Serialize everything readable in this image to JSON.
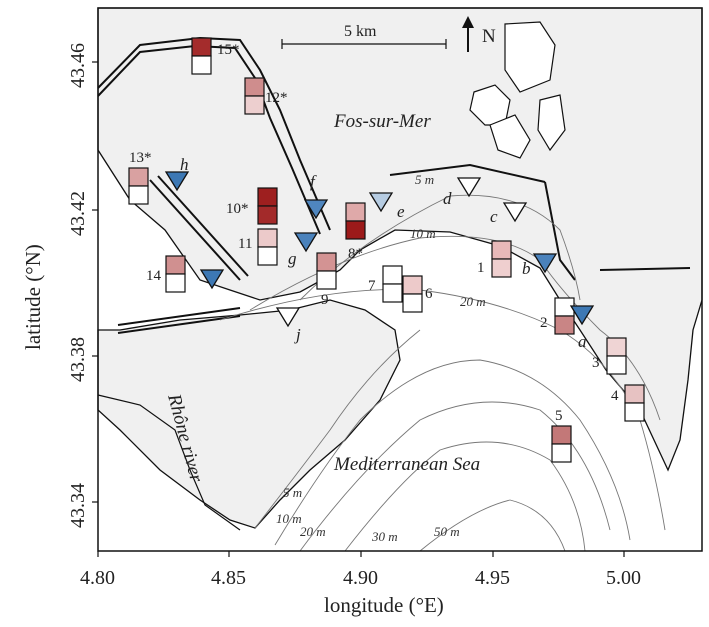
{
  "axes": {
    "xlabel": "longitude (°E)",
    "ylabel": "latitude (°N)",
    "xticks": [
      "4.80",
      "4.85",
      "4.90",
      "4.95",
      "5.00"
    ],
    "yticks": [
      "43.46",
      "43.42",
      "43.38",
      "43.34"
    ]
  },
  "labels": {
    "scale": "5 km",
    "north": "N",
    "fos": "Fos-sur-Mer",
    "sea": "Mediterranean Sea",
    "rhone": "Rhône river"
  },
  "depth_labels": {
    "d5a": "5 m",
    "d10a": "10 m",
    "d20a": "20 m",
    "d5b": "5 m",
    "d10b": "10 m",
    "d20b": "20 m",
    "d30": "30 m",
    "d50": "50 m"
  },
  "stations": [
    {
      "id": "1",
      "top": "#e8b9b9",
      "bottom": "#efcfcf"
    },
    {
      "id": "2",
      "top": "#ffffff",
      "bottom": "#c98585"
    },
    {
      "id": "3",
      "top": "#efd4d4",
      "bottom": "#ffffff"
    },
    {
      "id": "4",
      "top": "#e7c2c2",
      "bottom": "#ffffff"
    },
    {
      "id": "5",
      "top": "#c37878",
      "bottom": "#ffffff"
    },
    {
      "id": "6",
      "top": "#edcaca",
      "bottom": "#ffffff"
    },
    {
      "id": "7",
      "top": "#ffffff",
      "bottom": "#ffffff"
    },
    {
      "id": "8*",
      "top": "#dfa9a9",
      "bottom": "#9c1a1a"
    },
    {
      "id": "9",
      "top": "#d39393",
      "bottom": "#ffffff"
    },
    {
      "id": "10*",
      "top": "#9e1f1f",
      "bottom": "#a32a2a"
    },
    {
      "id": "11",
      "top": "#eccaca",
      "bottom": "#ffffff"
    },
    {
      "id": "12*",
      "top": "#cf8d8d",
      "bottom": "#edcfcf"
    },
    {
      "id": "13*",
      "top": "#d9a1a1",
      "bottom": "#ffffff"
    },
    {
      "id": "14",
      "top": "#d09090",
      "bottom": "#ffffff"
    },
    {
      "id": "15*",
      "top": "#a42c2c",
      "bottom": "#ffffff"
    }
  ],
  "triangles": [
    {
      "id": "a",
      "color": "#3d78b4"
    },
    {
      "id": "b",
      "color": "#4a82bc"
    },
    {
      "id": "c",
      "color": "#ffffff"
    },
    {
      "id": "d",
      "color": "#ffffff"
    },
    {
      "id": "e",
      "color": "#b6cce2"
    },
    {
      "id": "f",
      "color": "#4f86bf"
    },
    {
      "id": "g",
      "color": "#4a82bc"
    },
    {
      "id": "h",
      "color": "#3d78b4"
    },
    {
      "id": "i",
      "color": "#3d78b4"
    },
    {
      "id": "j",
      "color": "#ffffff"
    }
  ]
}
